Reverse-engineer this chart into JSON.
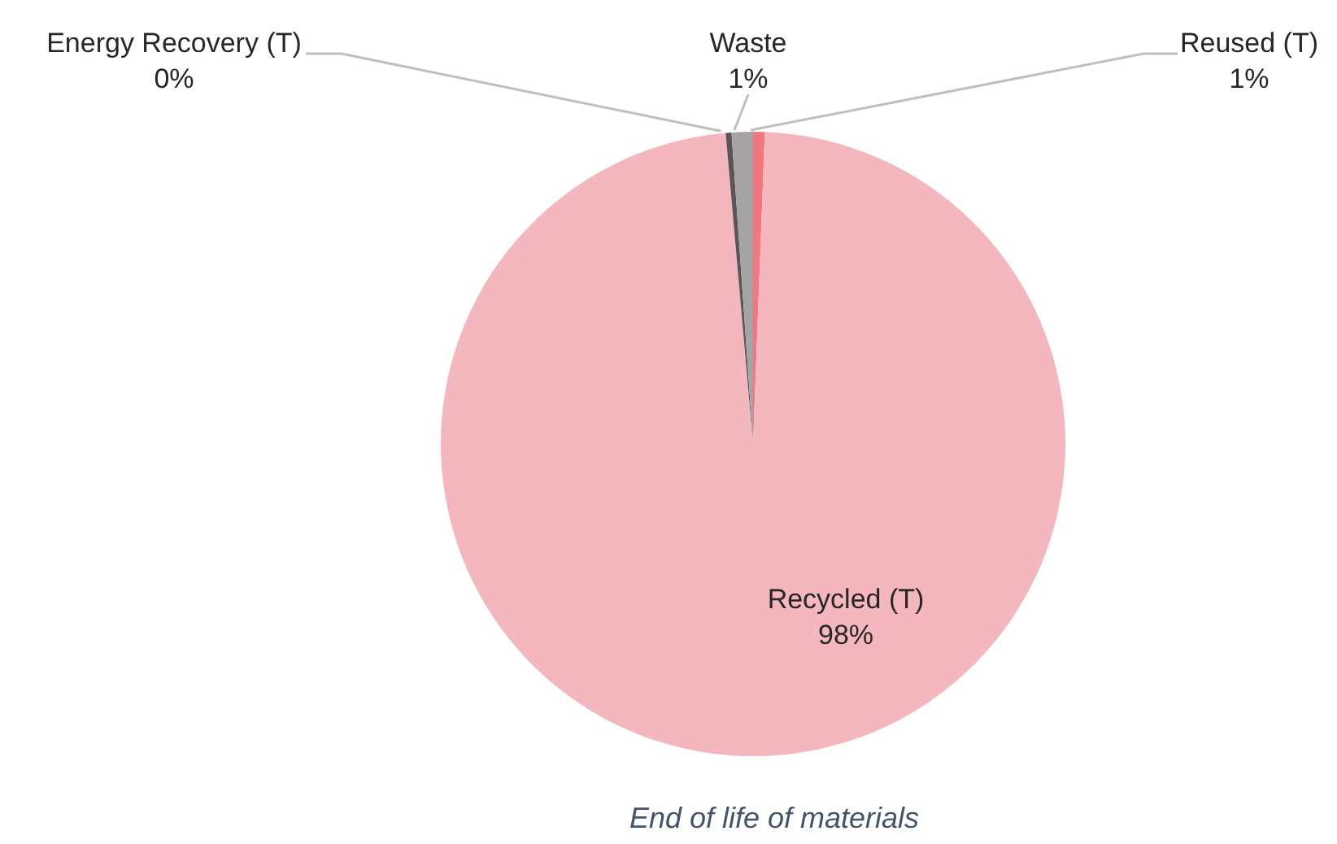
{
  "chart_data": {
    "type": "pie",
    "title": "End of life of materials",
    "categories": [
      "Reused (T)",
      "Recycled (T)",
      "Energy Recovery (T)",
      "Waste"
    ],
    "values": [
      0.6,
      98,
      0.3,
      1.1
    ],
    "value_labels": [
      "1%",
      "98%",
      "0%",
      "1%"
    ],
    "colors": [
      "#f4777f",
      "#f5b7be",
      "#5a5558",
      "#a6a3a6"
    ]
  }
}
